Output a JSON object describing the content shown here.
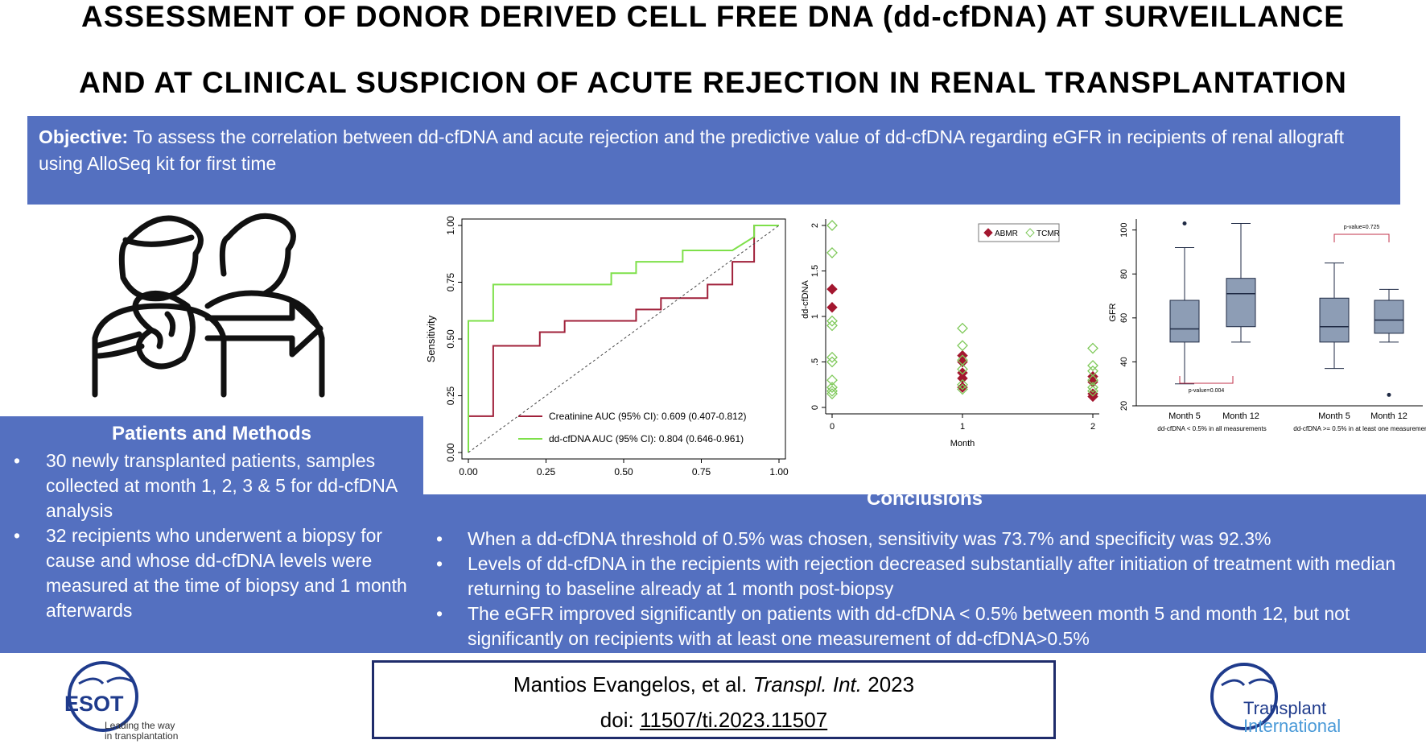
{
  "title": {
    "line1": "ASSESSMENT OF DONOR DERIVED CELL FREE DNA (dd-cfDNA) AT SURVEILLANCE",
    "line2": "AND AT CLINICAL SUSPICION OF ACUTE REJECTION IN RENAL TRANSPLANTATION"
  },
  "objective": {
    "label": "Objective:",
    "text": "To assess the correlation between dd-cfDNA and acute rejection and the predictive value of dd-cfDNA regarding eGFR in recipients of renal allograft using AlloSeq kit for first time"
  },
  "methods": {
    "heading": "Patients and Methods",
    "items": [
      "30 newly transplanted patients, samples collected at month 1, 2, 3 & 5 for dd-cfDNA analysis",
      "32 recipients who underwent a biopsy for cause and whose dd-cfDNA levels were measured at the time of biopsy and 1 month afterwards"
    ]
  },
  "conclusions": {
    "heading": "Conclusions",
    "items": [
      "When a dd-cfDNA threshold of 0.5% was chosen, sensitivity was 73.7% and specificity was 92.3%",
      "Levels of dd-cfDNA in the recipients with rejection decreased substantially after initiation of treatment with median returning to baseline already at 1 month post-biopsy",
      "The eGFR improved significantly on patients with dd-cfDNA < 0.5% between month 5 and month 12, but not significantly on recipients with at least one measurement of dd-cfDNA>0.5%"
    ]
  },
  "citation": {
    "authors": "Mantios Evangelos, et al.",
    "journal": "Transpl. Int.",
    "year": "2023",
    "doi_label": "doi:",
    "doi": "11507/ti.2023.11507"
  },
  "logos": {
    "esot_name": "ESOT",
    "esot_tagline_1": "Leading the way",
    "esot_tagline_2": "in transplantation",
    "ti_line1": "Transplant",
    "ti_line2": "International"
  },
  "colors": {
    "panel": "#5470c0",
    "creatinine": "#a0203a",
    "ddcfdna": "#7ee04a",
    "abmr": "#a3172f",
    "tcmr": "#7fc95a",
    "box_fill": "#8d9db5"
  },
  "chart_data": [
    {
      "type": "line",
      "xlabel": "",
      "ylabel": "Sensitivity",
      "xlim": [
        0,
        1
      ],
      "ylim": [
        0,
        1
      ],
      "xticks": [
        "0.00",
        "0.25",
        "0.50",
        "0.75",
        "1.00"
      ],
      "yticks": [
        "0.00",
        "0.25",
        "0.50",
        "0.75",
        "1.00"
      ],
      "legend_position": "bottom-right",
      "series": [
        {
          "name": "Creatinine  AUC (95% CI): 0.609 (0.407-0.812)",
          "color": "#a0203a",
          "points": [
            [
              0,
              0
            ],
            [
              0,
              0.16
            ],
            [
              0.08,
              0.16
            ],
            [
              0.08,
              0.47
            ],
            [
              0.23,
              0.47
            ],
            [
              0.23,
              0.53
            ],
            [
              0.31,
              0.53
            ],
            [
              0.31,
              0.58
            ],
            [
              0.54,
              0.58
            ],
            [
              0.54,
              0.63
            ],
            [
              0.62,
              0.63
            ],
            [
              0.62,
              0.68
            ],
            [
              0.77,
              0.68
            ],
            [
              0.77,
              0.74
            ],
            [
              0.85,
              0.74
            ],
            [
              0.85,
              0.84
            ],
            [
              0.92,
              0.84
            ],
            [
              0.92,
              1.0
            ],
            [
              1.0,
              1.0
            ]
          ]
        },
        {
          "name": "dd-cfDNA   AUC (95% CI): 0.804 (0.646-0.961)",
          "color": "#7ee04a",
          "points": [
            [
              0,
              0
            ],
            [
              0,
              0.58
            ],
            [
              0.08,
              0.58
            ],
            [
              0.08,
              0.74
            ],
            [
              0.46,
              0.74
            ],
            [
              0.46,
              0.79
            ],
            [
              0.54,
              0.79
            ],
            [
              0.54,
              0.84
            ],
            [
              0.69,
              0.84
            ],
            [
              0.69,
              0.89
            ],
            [
              0.85,
              0.89
            ],
            [
              0.92,
              0.95
            ],
            [
              0.92,
              1.0
            ],
            [
              1.0,
              1.0
            ]
          ]
        },
        {
          "name": "reference",
          "color": "#444444",
          "dashed": true,
          "points": [
            [
              0,
              0
            ],
            [
              1,
              1
            ]
          ]
        }
      ]
    },
    {
      "type": "scatter",
      "xlabel": "Month",
      "ylabel": "dd-cfDNA",
      "xlim": [
        0,
        2
      ],
      "ylim": [
        0,
        2
      ],
      "xticks": [
        "0",
        "1",
        "2"
      ],
      "yticks": [
        "0",
        ".5",
        "1",
        "1.5",
        "2"
      ],
      "legend_position": "top-right",
      "series": [
        {
          "name": "ABMR",
          "marker": "filled-diamond",
          "color": "#a3172f",
          "points": [
            [
              0,
              1.3
            ],
            [
              0,
              1.1
            ],
            [
              1,
              0.57
            ],
            [
              1,
              0.5
            ],
            [
              1,
              0.38
            ],
            [
              1,
              0.32
            ],
            [
              1,
              0.22
            ],
            [
              2,
              0.34
            ],
            [
              2,
              0.28
            ],
            [
              2,
              0.15
            ],
            [
              2,
              0.12
            ]
          ]
        },
        {
          "name": "TCMR",
          "marker": "hollow-diamond",
          "color": "#7fc95a",
          "points": [
            [
              0,
              2.0
            ],
            [
              0,
              1.7
            ],
            [
              0,
              0.95
            ],
            [
              0,
              0.9
            ],
            [
              0,
              0.55
            ],
            [
              0,
              0.5
            ],
            [
              0,
              0.3
            ],
            [
              0,
              0.22
            ],
            [
              0,
              0.18
            ],
            [
              0,
              0.15
            ],
            [
              1,
              0.87
            ],
            [
              1,
              0.68
            ],
            [
              1,
              0.52
            ],
            [
              1,
              0.42
            ],
            [
              1,
              0.25
            ],
            [
              1,
              0.2
            ],
            [
              2,
              0.65
            ],
            [
              2,
              0.46
            ],
            [
              2,
              0.4
            ],
            [
              2,
              0.3
            ],
            [
              2,
              0.22
            ],
            [
              2,
              0.18
            ]
          ]
        }
      ]
    },
    {
      "type": "box",
      "ylabel": "GFR",
      "ylim": [
        20,
        105
      ],
      "yticks": [
        "20",
        "40",
        "60",
        "80",
        "100"
      ],
      "categories": [
        "Month 5",
        "Month 12",
        "Month 5",
        "Month 12"
      ],
      "groups": [
        "dd-cfDNA < 0.5% in all measurements",
        "dd-cfDNA >= 0.5% in at least one measurement"
      ],
      "annotations": [
        "p-value=0.004",
        "p-value=0.725"
      ],
      "boxes": [
        {
          "min": 30,
          "q1": 49,
          "median": 55,
          "q3": 68,
          "max": 92,
          "outliers": [
            103
          ]
        },
        {
          "min": 49,
          "q1": 56,
          "median": 71,
          "q3": 78,
          "max": 103,
          "outliers": []
        },
        {
          "min": 37,
          "q1": 49,
          "median": 56,
          "q3": 69,
          "max": 85,
          "outliers": []
        },
        {
          "min": 49,
          "q1": 53,
          "median": 59,
          "q3": 68,
          "max": 73,
          "outliers": [
            25
          ]
        }
      ]
    }
  ]
}
